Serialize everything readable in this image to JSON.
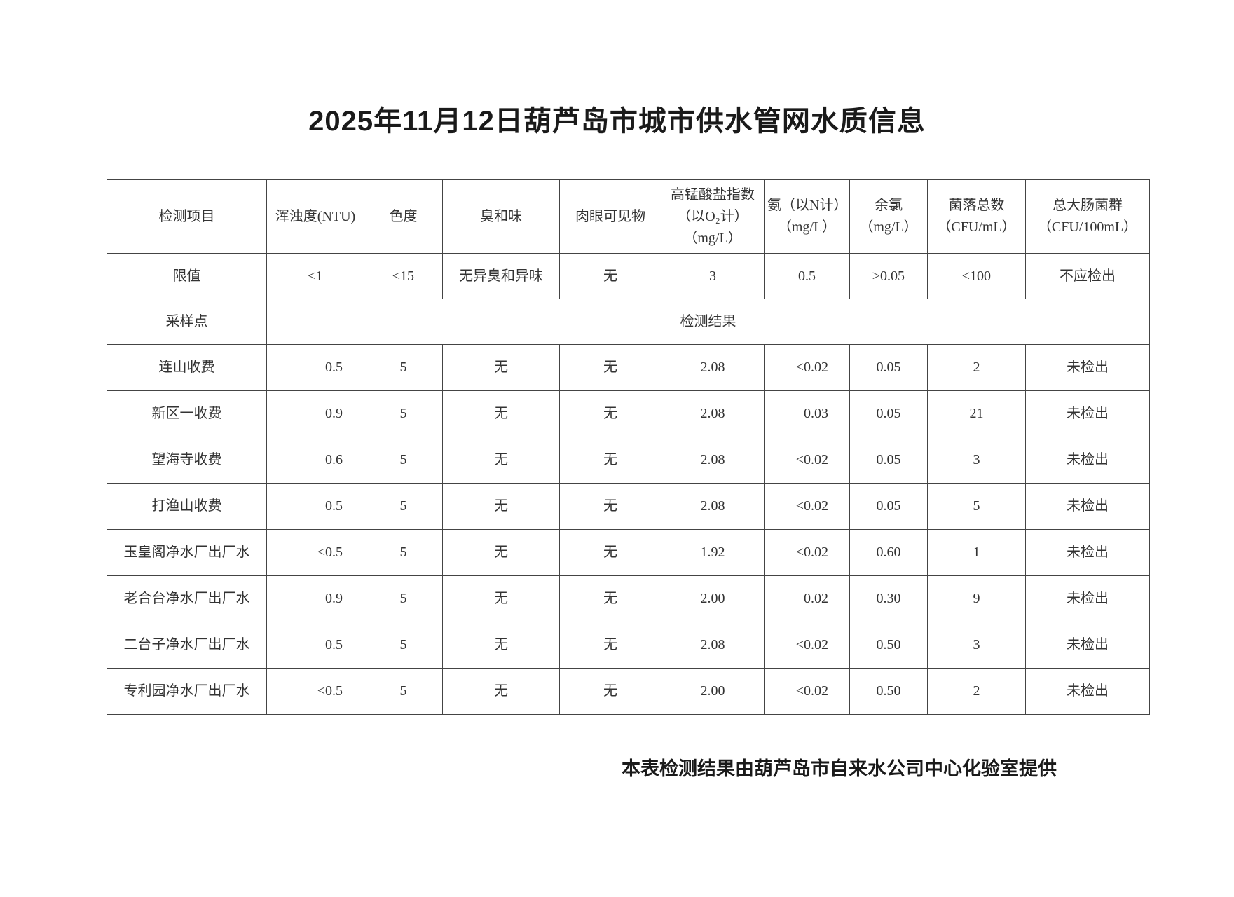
{
  "title": "2025年11月12日葫芦岛市城市供水管网水质信息",
  "table": {
    "header": {
      "item": "检测项目",
      "columns": [
        [
          "浑浊度(NTU)"
        ],
        [
          "色度"
        ],
        [
          "臭和味"
        ],
        [
          "肉眼可见物"
        ],
        [
          "高锰酸盐指数",
          "（以O₂计）",
          "（mg/L）"
        ],
        [
          "氨（以N计）",
          "（mg/L）"
        ],
        [
          "余氯",
          "（mg/L）"
        ],
        [
          "菌落总数",
          "（CFU/mL）"
        ],
        [
          "总大肠菌群",
          "（CFU/100mL）"
        ]
      ]
    },
    "limits": {
      "label": "限值",
      "values": [
        "≤1",
        "≤15",
        "无异臭和异味",
        "无",
        "3",
        "0.5",
        "≥0.05",
        "≤100",
        "不应检出"
      ]
    },
    "section": {
      "label": "采样点",
      "results_label": "检测结果"
    },
    "rows": [
      {
        "site": "连山收费",
        "values": [
          "0.5",
          "5",
          "无",
          "无",
          "2.08",
          "<0.02",
          "0.05",
          "2",
          "未检出"
        ]
      },
      {
        "site": "新区一收费",
        "values": [
          "0.9",
          "5",
          "无",
          "无",
          "2.08",
          "0.03",
          "0.05",
          "21",
          "未检出"
        ]
      },
      {
        "site": "望海寺收费",
        "values": [
          "0.6",
          "5",
          "无",
          "无",
          "2.08",
          "<0.02",
          "0.05",
          "3",
          "未检出"
        ]
      },
      {
        "site": "打渔山收费",
        "values": [
          "0.5",
          "5",
          "无",
          "无",
          "2.08",
          "<0.02",
          "0.05",
          "5",
          "未检出"
        ]
      },
      {
        "site": "玉皇阁净水厂出厂水",
        "values": [
          "<0.5",
          "5",
          "无",
          "无",
          "1.92",
          "<0.02",
          "0.60",
          "1",
          "未检出"
        ]
      },
      {
        "site": "老合台净水厂出厂水",
        "values": [
          "0.9",
          "5",
          "无",
          "无",
          "2.00",
          "0.02",
          "0.30",
          "9",
          "未检出"
        ]
      },
      {
        "site": "二台子净水厂出厂水",
        "values": [
          "0.5",
          "5",
          "无",
          "无",
          "2.08",
          "<0.02",
          "0.50",
          "3",
          "未检出"
        ]
      },
      {
        "site": "专利园净水厂出厂水",
        "values": [
          "<0.5",
          "5",
          "无",
          "无",
          "2.00",
          "<0.02",
          "0.50",
          "2",
          "未检出"
        ]
      }
    ]
  },
  "footer": "本表检测结果由葫芦岛市自来水公司中心化验室提供"
}
